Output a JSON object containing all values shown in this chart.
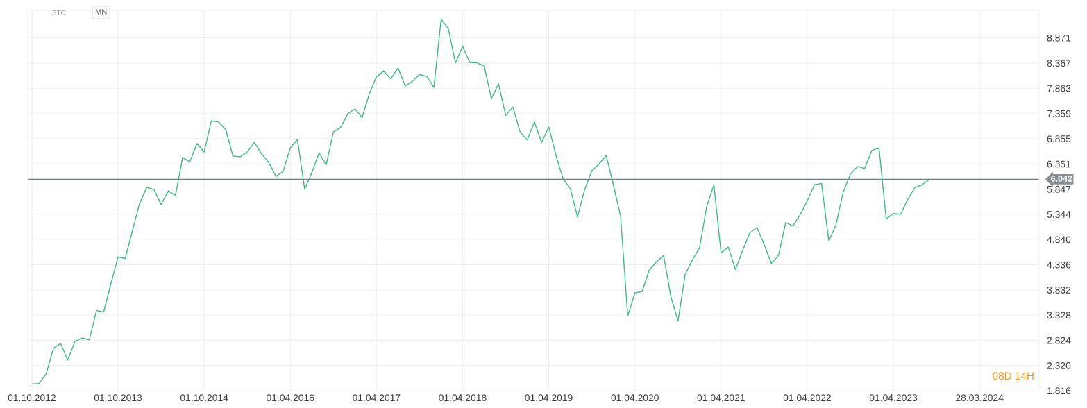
{
  "chart_data": {
    "type": "line",
    "annotations": [
      "STC",
      "MN",
      "08D 14H"
    ],
    "categories": [
      "01.10.2012",
      null,
      null,
      null,
      null,
      null,
      null,
      null,
      null,
      null,
      null,
      null,
      "01.10.2013",
      null,
      null,
      null,
      null,
      null,
      null,
      null,
      null,
      null,
      null,
      null,
      "01.10.2014",
      null,
      null,
      null,
      null,
      null,
      null,
      null,
      null,
      null,
      null,
      null,
      "01.04.2016",
      null,
      null,
      null,
      null,
      null,
      null,
      null,
      null,
      null,
      null,
      null,
      "01.04.2017",
      null,
      null,
      null,
      null,
      null,
      null,
      null,
      null,
      null,
      null,
      null,
      "01.04.2018",
      null,
      null,
      null,
      null,
      null,
      null,
      null,
      null,
      null,
      null,
      null,
      "01.04.2019",
      null,
      null,
      null,
      null,
      null,
      null,
      null,
      null,
      null,
      null,
      null,
      "01.04.2020",
      null,
      null,
      null,
      null,
      null,
      null,
      null,
      null,
      null,
      null,
      null,
      "01.04.2021",
      null,
      null,
      null,
      null,
      null,
      null,
      null,
      null,
      null,
      null,
      null,
      "01.04.2022",
      null,
      null,
      null,
      null,
      null,
      null,
      null,
      null,
      null,
      null,
      null,
      "01.04.2023",
      null,
      null,
      null,
      null,
      null,
      null,
      null,
      null,
      null,
      null,
      null,
      "28.03.2024",
      null,
      null,
      null,
      null,
      null,
      null,
      null,
      null
    ],
    "series": [
      {
        "color": "#3dba7e",
        "values": [
          1.95,
          1.96,
          2.15,
          2.66,
          2.76,
          2.43,
          2.8,
          2.87,
          2.83,
          3.42,
          3.39,
          3.95,
          4.49,
          4.46,
          5.01,
          5.56,
          5.88,
          5.84,
          5.54,
          5.81,
          5.72,
          6.48,
          6.39,
          6.76,
          6.59,
          7.21,
          7.19,
          7.04,
          6.51,
          6.49,
          6.59,
          6.78,
          6.55,
          6.38,
          6.1,
          6.2,
          6.67,
          6.84,
          5.84,
          6.18,
          6.57,
          6.33,
          6.99,
          7.08,
          7.35,
          7.45,
          7.28,
          7.75,
          8.09,
          8.21,
          8.05,
          8.27,
          7.91,
          8.0,
          8.14,
          8.1,
          7.88,
          9.24,
          9.06,
          8.37,
          8.7,
          8.38,
          8.37,
          8.31,
          7.66,
          7.95,
          7.32,
          7.49,
          6.99,
          6.83,
          7.19,
          6.78,
          7.09,
          6.52,
          6.05,
          5.86,
          5.29,
          5.84,
          6.21,
          6.35,
          6.52,
          5.93,
          5.31,
          3.31,
          3.77,
          3.8,
          4.23,
          4.39,
          4.52,
          3.7,
          3.21,
          4.14,
          4.43,
          4.67,
          5.5,
          5.93,
          4.57,
          4.69,
          4.24,
          4.62,
          4.97,
          5.08,
          4.74,
          4.36,
          4.52,
          5.18,
          5.11,
          5.33,
          5.61,
          5.93,
          5.96,
          4.81,
          5.13,
          5.78,
          6.14,
          6.3,
          6.26,
          6.62,
          6.67,
          5.25,
          5.36,
          5.34,
          5.64,
          5.88,
          5.93,
          6.04,
          null,
          null,
          null,
          null,
          null,
          null,
          null,
          null,
          null,
          null,
          null,
          null,
          null,
          null,
          null
        ]
      }
    ],
    "ylim": [
      1.816,
      9.42
    ],
    "yticks": [
      {
        "value": 1.816,
        "label": "1.816"
      },
      {
        "value": 2.32,
        "label": "2.320"
      },
      {
        "value": 2.824,
        "label": "2.824"
      },
      {
        "value": 3.328,
        "label": "3.328"
      },
      {
        "value": 3.832,
        "label": "3.832"
      },
      {
        "value": 4.336,
        "label": "4.336"
      },
      {
        "value": 4.84,
        "label": "4.840"
      },
      {
        "value": 5.344,
        "label": "5.344"
      },
      {
        "value": 5.847,
        "label": "5.847"
      },
      {
        "value": 6.351,
        "label": "6.351"
      },
      {
        "value": 6.855,
        "label": "6.855"
      },
      {
        "value": 7.359,
        "label": "7.359"
      },
      {
        "value": 7.863,
        "label": "7.863"
      },
      {
        "value": 8.367,
        "label": "8.367"
      },
      {
        "value": 8.871,
        "label": "8.871"
      }
    ],
    "ref_lines": [
      {
        "axis": "y",
        "value": 6.042,
        "label": "6.042",
        "color": "#6f7e83"
      }
    ],
    "grid": true,
    "marker": "none",
    "line_style": "solid",
    "legend": false
  }
}
